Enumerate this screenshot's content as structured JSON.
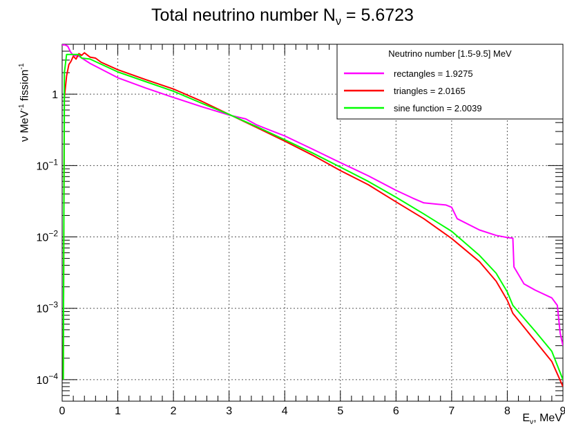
{
  "title": {
    "prefix": "Total neutrino number N",
    "subscript": "ν",
    "suffix": " = 5.6723"
  },
  "axis_labels": {
    "y_prefix": "ν MeV",
    "y_exp1": "-1",
    "y_mid": " fission",
    "y_exp2": "-1",
    "x_prefix": "E",
    "x_subscript": "ν",
    "x_suffix": ", MeV"
  },
  "colors": {
    "rectangles": "#ff00ff",
    "triangles": "#ff0000",
    "sine": "#00ff00",
    "grid": "#555555",
    "frame": "#000000"
  },
  "chart_data": {
    "type": "line",
    "title": "Total neutrino number Nν = 5.6723",
    "xlabel": "Eν, MeV",
    "ylabel": "ν MeV-1 fission-1",
    "xlim": [
      0,
      9
    ],
    "ylim": [
      5e-05,
      5
    ],
    "yscale": "log",
    "grid": true,
    "x_ticks": [
      "0",
      "1",
      "2",
      "3",
      "4",
      "5",
      "6",
      "7",
      "8",
      "9"
    ],
    "y_ticks": [
      {
        "value": 1,
        "base": "1",
        "exp": ""
      },
      {
        "value": 0.1,
        "base": "10",
        "exp": "−1"
      },
      {
        "value": 0.01,
        "base": "10",
        "exp": "−2"
      },
      {
        "value": 0.001,
        "base": "10",
        "exp": "−3"
      },
      {
        "value": 0.0001,
        "base": "10",
        "exp": "−4"
      }
    ],
    "legend": {
      "position": "top-right",
      "title": "Neutrino number [1.5-9.5] MeV",
      "entries": [
        "rectangles = 1.9275",
        "triangles = 2.0165",
        "sine function = 2.0039"
      ]
    },
    "series": [
      {
        "name": "rectangles = 1.9275",
        "color_key": "rectangles",
        "points": [
          [
            0,
            4.9
          ],
          [
            0.05,
            4.9
          ],
          [
            0.1,
            4.7
          ],
          [
            0.15,
            3.9
          ],
          [
            0.2,
            3.5
          ],
          [
            0.3,
            3.4
          ],
          [
            0.5,
            2.7
          ],
          [
            1.0,
            1.7
          ],
          [
            1.5,
            1.22
          ],
          [
            2.0,
            0.9
          ],
          [
            2.5,
            0.67
          ],
          [
            3.0,
            0.51
          ],
          [
            3.3,
            0.45
          ],
          [
            3.5,
            0.37
          ],
          [
            4.0,
            0.26
          ],
          [
            4.5,
            0.17
          ],
          [
            5.0,
            0.11
          ],
          [
            5.5,
            0.072
          ],
          [
            6.0,
            0.045
          ],
          [
            6.3,
            0.035
          ],
          [
            6.5,
            0.03
          ],
          [
            6.9,
            0.028
          ],
          [
            7.0,
            0.026
          ],
          [
            7.1,
            0.018
          ],
          [
            7.5,
            0.0125
          ],
          [
            7.8,
            0.0105
          ],
          [
            8.0,
            0.0098
          ],
          [
            8.1,
            0.0096
          ],
          [
            8.12,
            0.0038
          ],
          [
            8.3,
            0.0022
          ],
          [
            8.5,
            0.0018
          ],
          [
            8.8,
            0.0014
          ],
          [
            8.9,
            0.0011
          ],
          [
            8.95,
            0.00045
          ],
          [
            9.0,
            0.0003
          ]
        ]
      },
      {
        "name": "triangles = 2.0165",
        "color_key": "triangles",
        "points": [
          [
            0.02,
            0.0001
          ],
          [
            0.04,
            0.9
          ],
          [
            0.08,
            1.8
          ],
          [
            0.12,
            2.6
          ],
          [
            0.16,
            2.9
          ],
          [
            0.2,
            3.4
          ],
          [
            0.25,
            3.1
          ],
          [
            0.3,
            3.7
          ],
          [
            0.35,
            3.5
          ],
          [
            0.4,
            3.8
          ],
          [
            0.5,
            3.3
          ],
          [
            0.6,
            3.2
          ],
          [
            0.7,
            2.8
          ],
          [
            1.0,
            2.2
          ],
          [
            1.5,
            1.6
          ],
          [
            2.0,
            1.18
          ],
          [
            2.5,
            0.8
          ],
          [
            3.0,
            0.52
          ],
          [
            3.5,
            0.34
          ],
          [
            4.0,
            0.22
          ],
          [
            4.5,
            0.14
          ],
          [
            5.0,
            0.085
          ],
          [
            5.5,
            0.054
          ],
          [
            6.0,
            0.031
          ],
          [
            6.5,
            0.018
          ],
          [
            7.0,
            0.0095
          ],
          [
            7.5,
            0.0045
          ],
          [
            7.8,
            0.0024
          ],
          [
            8.0,
            0.0013
          ],
          [
            8.1,
            0.00085
          ],
          [
            8.5,
            0.00035
          ],
          [
            8.8,
            0.00018
          ],
          [
            9.0,
            8e-05
          ]
        ]
      },
      {
        "name": "sine function = 2.0039",
        "color_key": "sine",
        "points": [
          [
            0.02,
            0.0001
          ],
          [
            0.04,
            2.0
          ],
          [
            0.08,
            3.6
          ],
          [
            0.3,
            3.6
          ],
          [
            0.35,
            3.2
          ],
          [
            0.5,
            3.1
          ],
          [
            1.0,
            2.05
          ],
          [
            1.5,
            1.5
          ],
          [
            2.0,
            1.1
          ],
          [
            2.5,
            0.75
          ],
          [
            3.0,
            0.52
          ],
          [
            3.5,
            0.35
          ],
          [
            4.0,
            0.23
          ],
          [
            4.5,
            0.15
          ],
          [
            5.0,
            0.095
          ],
          [
            5.5,
            0.06
          ],
          [
            6.0,
            0.036
          ],
          [
            6.5,
            0.021
          ],
          [
            7.0,
            0.012
          ],
          [
            7.5,
            0.0055
          ],
          [
            7.8,
            0.0031
          ],
          [
            8.0,
            0.0017
          ],
          [
            8.1,
            0.0011
          ],
          [
            8.5,
            0.00048
          ],
          [
            8.8,
            0.00025
          ],
          [
            9.0,
            0.0001
          ]
        ]
      }
    ]
  }
}
